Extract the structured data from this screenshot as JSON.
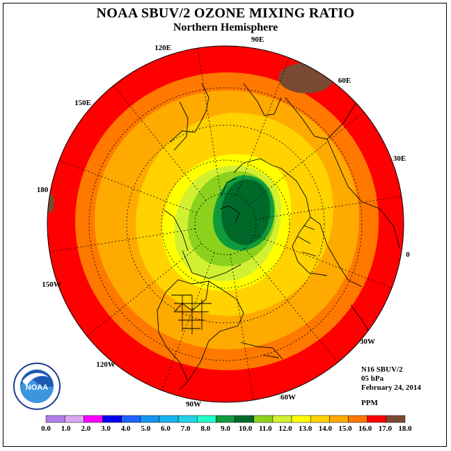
{
  "title": "NOAA SBUV/2 OZONE MIXING RATIO",
  "subtitle": "Northern Hemisphere",
  "info": {
    "instrument": "N16 SBUV/2",
    "level": "05 hPa",
    "date": "February 24, 2014",
    "units": "PPM"
  },
  "longitude_labels": [
    "90E",
    "60E",
    "30E",
    "0",
    "30W",
    "60W",
    "90W",
    "120W",
    "150W",
    "180",
    "150E",
    "120E"
  ],
  "colorbar": {
    "ticks": [
      "0.0",
      "1.0",
      "2.0",
      "3.0",
      "4.0",
      "5.0",
      "6.0",
      "7.0",
      "8.0",
      "9.0",
      "10.0",
      "11.0",
      "12.0",
      "13.0",
      "14.0",
      "15.0",
      "16.0",
      "17.0",
      "18.0"
    ],
    "colors": [
      "#b27ee8",
      "#d8a8f0",
      "#ff00ff",
      "#0000ee",
      "#1e64ff",
      "#1496f0",
      "#1ab4f0",
      "#22d2e6",
      "#22ffcc",
      "#109a3c",
      "#00692a",
      "#8cd21c",
      "#d2f032",
      "#ffff00",
      "#ffd200",
      "#ffaa00",
      "#ff7800",
      "#ff0000",
      "#7a4a32"
    ]
  },
  "logo_text": "NOAA"
}
